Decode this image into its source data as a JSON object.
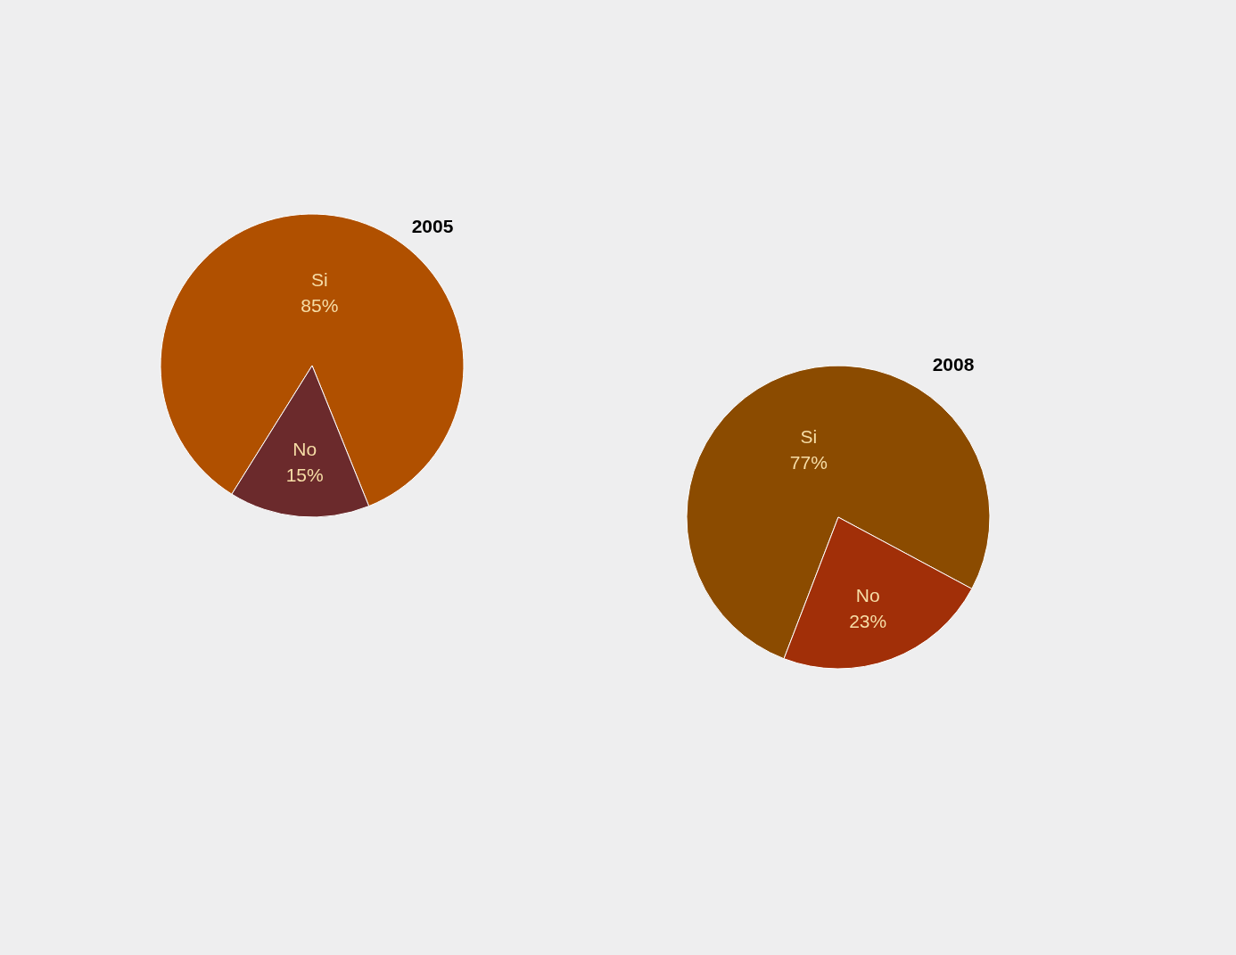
{
  "chart_data": [
    {
      "type": "pie",
      "title": "2005",
      "categories": [
        "Si",
        "No"
      ],
      "values": [
        85,
        15
      ],
      "colors": [
        "#b05000",
        "#6b2a2c"
      ],
      "value_labels": [
        "85%",
        "15%"
      ]
    },
    {
      "type": "pie",
      "title": "2008",
      "categories": [
        "Si",
        "No"
      ],
      "values": [
        77,
        23
      ],
      "colors": [
        "#8b4b00",
        "#a12f08"
      ],
      "value_labels": [
        "77%",
        "23%"
      ]
    }
  ]
}
